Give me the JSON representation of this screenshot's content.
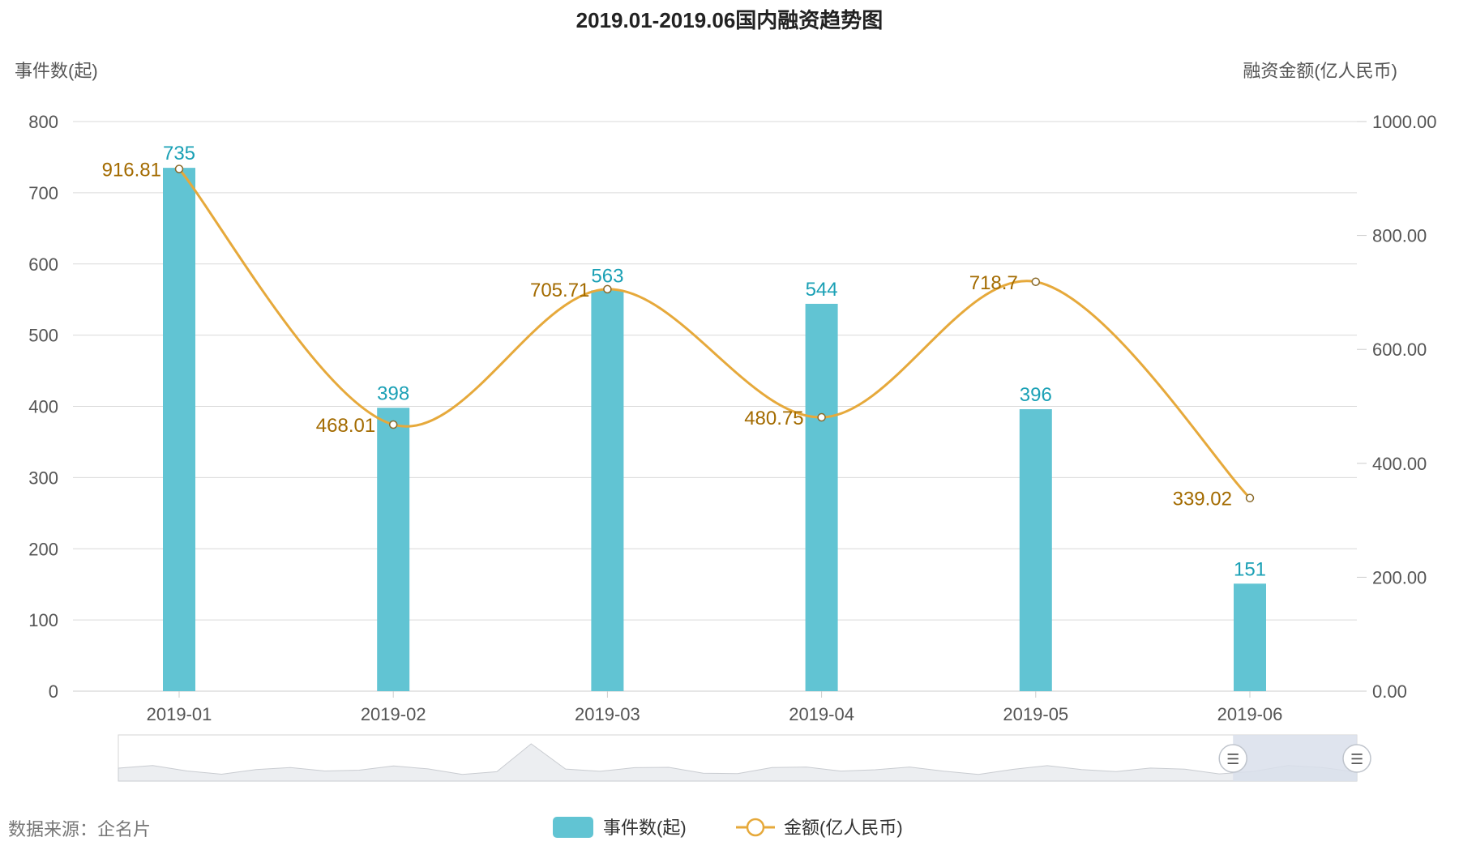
{
  "chart_data": {
    "type": "bar+line",
    "title": "2019.01-2019.06国内融资趋势图",
    "categories": [
      "2019-01",
      "2019-02",
      "2019-03",
      "2019-04",
      "2019-05",
      "2019-06"
    ],
    "y_left": {
      "name": "事件数(起)",
      "range": [
        0,
        800
      ],
      "ticks": [
        "0",
        "100",
        "200",
        "300",
        "400",
        "500",
        "600",
        "700",
        "800"
      ]
    },
    "y_right": {
      "name": "融资金额(亿人民币)",
      "range": [
        0,
        1000
      ],
      "ticks": [
        "0.00",
        "200.00",
        "400.00",
        "600.00",
        "800.00",
        "1000.00"
      ]
    },
    "series": [
      {
        "name": "事件数(起)",
        "type": "bar",
        "axis": "left",
        "color": "#61c4d3",
        "label_color": "#1aa0b5",
        "values": [
          735,
          398,
          563,
          544,
          396,
          151
        ]
      },
      {
        "name": "金额(亿人民币)",
        "type": "line",
        "axis": "right",
        "smooth": true,
        "color": "#e6a93b",
        "label_color": "#a36b00",
        "values": [
          916.81,
          468.01,
          705.71,
          480.75,
          718.7,
          339.02
        ],
        "labels": [
          "916.81",
          "468.01",
          "705.71",
          "480.75",
          "718.7",
          "339.02"
        ]
      }
    ],
    "grid": true,
    "legend_position": "bottom-center"
  },
  "source_note": "数据来源：企名片",
  "datazoom": {
    "range_start": 0.9,
    "range_end": 1.0,
    "handle_glyph": "☰"
  },
  "colors": {
    "grid": "#d9d9d9",
    "axis": "#cccccc",
    "zoom_fill": "#dfe4ee",
    "zoom_shadow": "#e9ebef"
  }
}
